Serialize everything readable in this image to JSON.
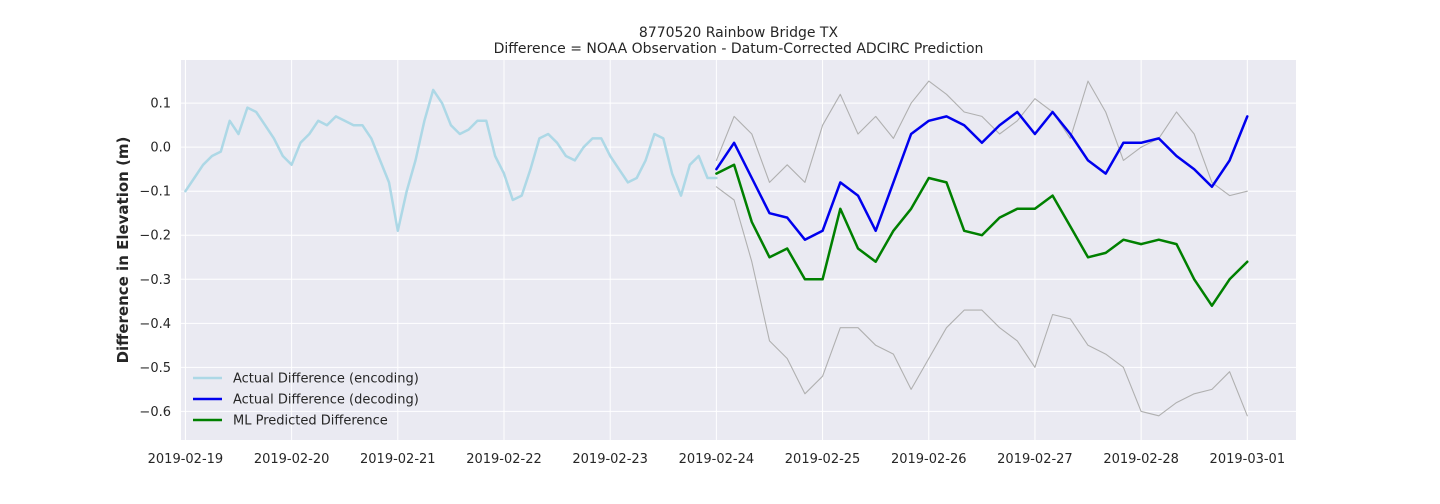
{
  "chart_data": {
    "type": "line",
    "title": "8770520 Rainbow Bridge TX",
    "subtitle": "Difference = NOAA Observation - Datum-Corrected ADCIRC Prediction",
    "xlabel": "",
    "ylabel": "Difference in Elevation (m)",
    "xlim": [
      "2019-02-18T23:00",
      "2019-03-01T11:00"
    ],
    "ylim": [
      -0.665,
      0.198
    ],
    "grid": true,
    "legend_position": "lower-left",
    "x_ticks": [
      "2019-02-19",
      "2019-02-20",
      "2019-02-21",
      "2019-02-22",
      "2019-02-23",
      "2019-02-24",
      "2019-02-25",
      "2019-02-26",
      "2019-02-27",
      "2019-02-28",
      "2019-03-01"
    ],
    "y_ticks": [
      0.1,
      0.0,
      -0.1,
      -0.2,
      -0.3,
      -0.4,
      -0.5,
      -0.6
    ],
    "y_tick_labels": [
      "0.1",
      "0.0",
      "−0.1",
      "−0.2",
      "−0.3",
      "−0.4",
      "−0.5",
      "−0.6"
    ],
    "series": [
      {
        "name": "Actual Difference (encoding)",
        "color": "#add8e6",
        "in_legend": true,
        "x": [
          "2019-02-19T00:00",
          "2019-02-19T02:00",
          "2019-02-19T04:00",
          "2019-02-19T06:00",
          "2019-02-19T08:00",
          "2019-02-19T10:00",
          "2019-02-19T12:00",
          "2019-02-19T14:00",
          "2019-02-19T16:00",
          "2019-02-19T18:00",
          "2019-02-19T20:00",
          "2019-02-19T22:00",
          "2019-02-20T00:00",
          "2019-02-20T02:00",
          "2019-02-20T04:00",
          "2019-02-20T06:00",
          "2019-02-20T08:00",
          "2019-02-20T10:00",
          "2019-02-20T12:00",
          "2019-02-20T14:00",
          "2019-02-20T16:00",
          "2019-02-20T18:00",
          "2019-02-20T20:00",
          "2019-02-20T22:00",
          "2019-02-21T00:00",
          "2019-02-21T02:00",
          "2019-02-21T04:00",
          "2019-02-21T06:00",
          "2019-02-21T08:00",
          "2019-02-21T10:00",
          "2019-02-21T12:00",
          "2019-02-21T14:00",
          "2019-02-21T16:00",
          "2019-02-21T18:00",
          "2019-02-21T20:00",
          "2019-02-21T22:00",
          "2019-02-22T00:00",
          "2019-02-22T02:00",
          "2019-02-22T04:00",
          "2019-02-22T06:00",
          "2019-02-22T08:00",
          "2019-02-22T10:00",
          "2019-02-22T12:00",
          "2019-02-22T14:00",
          "2019-02-22T16:00",
          "2019-02-22T18:00",
          "2019-02-22T20:00",
          "2019-02-22T22:00",
          "2019-02-23T00:00",
          "2019-02-23T02:00",
          "2019-02-23T04:00",
          "2019-02-23T06:00",
          "2019-02-23T08:00",
          "2019-02-23T10:00",
          "2019-02-23T12:00",
          "2019-02-23T14:00",
          "2019-02-23T16:00",
          "2019-02-23T18:00",
          "2019-02-23T20:00",
          "2019-02-23T22:00",
          "2019-02-24T00:00"
        ],
        "values": [
          -0.1,
          -0.07,
          -0.04,
          -0.02,
          -0.01,
          0.06,
          0.03,
          0.09,
          0.08,
          0.05,
          0.02,
          -0.02,
          -0.04,
          0.01,
          0.03,
          0.06,
          0.05,
          0.07,
          0.06,
          0.05,
          0.05,
          0.02,
          -0.03,
          -0.08,
          -0.19,
          -0.1,
          -0.03,
          0.06,
          0.13,
          0.1,
          0.05,
          0.03,
          0.04,
          0.06,
          0.06,
          -0.02,
          -0.06,
          -0.12,
          -0.11,
          -0.05,
          0.02,
          0.03,
          0.01,
          -0.02,
          -0.03,
          0.0,
          0.02,
          0.02,
          -0.02,
          -0.05,
          -0.08,
          -0.07,
          -0.03,
          0.03,
          0.02,
          -0.06,
          -0.11,
          -0.04,
          -0.02,
          -0.07,
          -0.07
        ]
      },
      {
        "name": "Actual Difference (decoding)",
        "color": "#0000ee",
        "in_legend": true,
        "x": [
          "2019-02-24T00:00",
          "2019-02-24T04:00",
          "2019-02-24T08:00",
          "2019-02-24T12:00",
          "2019-02-24T16:00",
          "2019-02-24T20:00",
          "2019-02-25T00:00",
          "2019-02-25T04:00",
          "2019-02-25T08:00",
          "2019-02-25T12:00",
          "2019-02-25T16:00",
          "2019-02-25T20:00",
          "2019-02-26T00:00",
          "2019-02-26T04:00",
          "2019-02-26T08:00",
          "2019-02-26T12:00",
          "2019-02-26T16:00",
          "2019-02-26T20:00",
          "2019-02-27T00:00",
          "2019-02-27T04:00",
          "2019-02-27T08:00",
          "2019-02-27T12:00",
          "2019-02-27T16:00",
          "2019-02-27T20:00",
          "2019-02-28T00:00",
          "2019-02-28T04:00",
          "2019-02-28T08:00",
          "2019-02-28T12:00",
          "2019-02-28T16:00",
          "2019-02-28T20:00",
          "2019-03-01T00:00"
        ],
        "values": [
          -0.05,
          0.01,
          -0.07,
          -0.15,
          -0.16,
          -0.21,
          -0.19,
          -0.08,
          -0.11,
          -0.19,
          -0.08,
          0.03,
          0.06,
          0.07,
          0.05,
          0.01,
          0.05,
          0.08,
          0.03,
          0.08,
          0.03,
          -0.03,
          -0.06,
          0.01,
          0.01,
          0.02,
          -0.02,
          -0.05,
          -0.09,
          -0.03,
          0.07
        ]
      },
      {
        "name": "ML Predicted Difference",
        "color": "#008000",
        "in_legend": true,
        "x": [
          "2019-02-24T00:00",
          "2019-02-24T04:00",
          "2019-02-24T08:00",
          "2019-02-24T12:00",
          "2019-02-24T16:00",
          "2019-02-24T20:00",
          "2019-02-25T00:00",
          "2019-02-25T04:00",
          "2019-02-25T08:00",
          "2019-02-25T12:00",
          "2019-02-25T16:00",
          "2019-02-25T20:00",
          "2019-02-26T00:00",
          "2019-02-26T04:00",
          "2019-02-26T08:00",
          "2019-02-26T12:00",
          "2019-02-26T16:00",
          "2019-02-26T20:00",
          "2019-02-27T00:00",
          "2019-02-27T04:00",
          "2019-02-27T08:00",
          "2019-02-27T12:00",
          "2019-02-27T16:00",
          "2019-02-27T20:00",
          "2019-02-28T00:00",
          "2019-02-28T04:00",
          "2019-02-28T08:00",
          "2019-02-28T12:00",
          "2019-02-28T16:00",
          "2019-02-28T20:00",
          "2019-03-01T00:00"
        ],
        "values": [
          -0.06,
          -0.04,
          -0.17,
          -0.25,
          -0.23,
          -0.3,
          -0.3,
          -0.14,
          -0.23,
          -0.26,
          -0.19,
          -0.14,
          -0.07,
          -0.08,
          -0.19,
          -0.2,
          -0.16,
          -0.14,
          -0.14,
          -0.11,
          -0.18,
          -0.25,
          -0.24,
          -0.21,
          -0.22,
          -0.21,
          -0.22,
          -0.3,
          -0.36,
          -0.3,
          -0.26
        ]
      },
      {
        "name": "",
        "color": "#b0b0b0",
        "in_legend": false,
        "x": [
          "2019-02-24T00:00",
          "2019-02-24T04:00",
          "2019-02-24T08:00",
          "2019-02-24T12:00",
          "2019-02-24T16:00",
          "2019-02-24T20:00",
          "2019-02-25T00:00",
          "2019-02-25T04:00",
          "2019-02-25T08:00",
          "2019-02-25T12:00",
          "2019-02-25T16:00",
          "2019-02-25T20:00",
          "2019-02-26T00:00",
          "2019-02-26T04:00",
          "2019-02-26T08:00",
          "2019-02-26T12:00",
          "2019-02-26T16:00",
          "2019-02-26T20:00",
          "2019-02-27T00:00",
          "2019-02-27T04:00",
          "2019-02-27T08:00",
          "2019-02-27T12:00",
          "2019-02-27T16:00",
          "2019-02-27T20:00",
          "2019-02-28T00:00",
          "2019-02-28T04:00",
          "2019-02-28T08:00",
          "2019-02-28T12:00",
          "2019-02-28T16:00",
          "2019-02-28T20:00",
          "2019-03-01T00:00"
        ],
        "values": [
          -0.03,
          0.07,
          0.03,
          -0.08,
          -0.04,
          -0.08,
          0.05,
          0.12,
          0.03,
          0.07,
          0.02,
          0.1,
          0.15,
          0.12,
          0.08,
          0.07,
          0.03,
          0.06,
          0.11,
          0.08,
          0.02,
          0.15,
          0.08,
          -0.03,
          0.0,
          0.02,
          0.08,
          0.03,
          -0.08,
          -0.11,
          -0.1
        ]
      },
      {
        "name": "",
        "color": "#b0b0b0",
        "in_legend": false,
        "x": [
          "2019-02-24T00:00",
          "2019-02-24T04:00",
          "2019-02-24T08:00",
          "2019-02-24T12:00",
          "2019-02-24T16:00",
          "2019-02-24T20:00",
          "2019-02-25T00:00",
          "2019-02-25T04:00",
          "2019-02-25T08:00",
          "2019-02-25T12:00",
          "2019-02-25T16:00",
          "2019-02-25T20:00",
          "2019-02-26T00:00",
          "2019-02-26T04:00",
          "2019-02-26T08:00",
          "2019-02-26T12:00",
          "2019-02-26T16:00",
          "2019-02-26T20:00",
          "2019-02-27T00:00",
          "2019-02-27T04:00",
          "2019-02-27T08:00",
          "2019-02-27T12:00",
          "2019-02-27T16:00",
          "2019-02-27T20:00",
          "2019-02-28T00:00",
          "2019-02-28T04:00",
          "2019-02-28T08:00",
          "2019-02-28T12:00",
          "2019-02-28T16:00",
          "2019-02-28T20:00",
          "2019-03-01T00:00"
        ],
        "values": [
          -0.09,
          -0.12,
          -0.26,
          -0.44,
          -0.48,
          -0.56,
          -0.52,
          -0.41,
          -0.41,
          -0.45,
          -0.47,
          -0.55,
          -0.48,
          -0.41,
          -0.37,
          -0.37,
          -0.41,
          -0.44,
          -0.5,
          -0.38,
          -0.39,
          -0.45,
          -0.47,
          -0.5,
          -0.6,
          -0.61,
          -0.58,
          -0.56,
          -0.55,
          -0.51,
          -0.61
        ]
      }
    ]
  }
}
